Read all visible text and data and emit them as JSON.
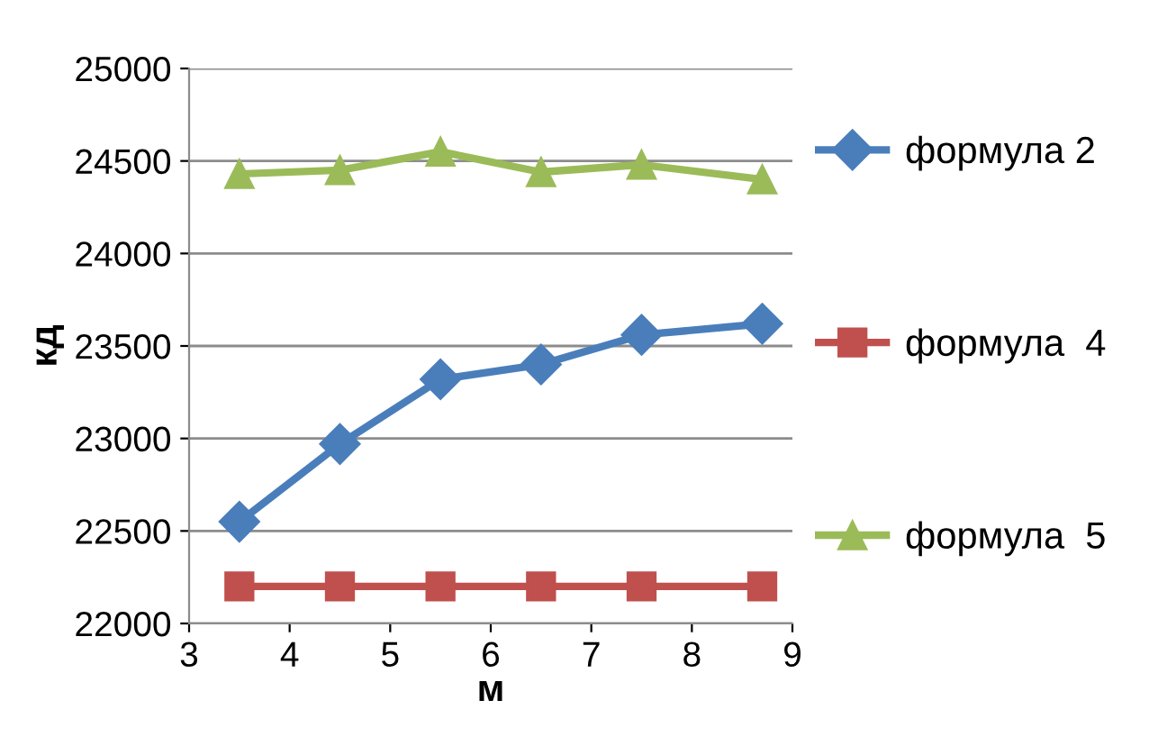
{
  "chart_data": {
    "type": "line",
    "xlabel": "м",
    "ylabel": "кд",
    "x": [
      3.5,
      4.5,
      5.5,
      6.5,
      7.5,
      8.7
    ],
    "xlim": [
      3,
      9
    ],
    "xticks": [
      3,
      4,
      5,
      6,
      7,
      8,
      9
    ],
    "ylim": [
      22000,
      25000
    ],
    "yticks": [
      22000,
      22500,
      23000,
      23500,
      24000,
      24500,
      25000
    ],
    "grid": "y",
    "legend": "right",
    "series": [
      {
        "name": "формула 2",
        "color": "#4a7ebb",
        "marker": "diamond",
        "values": [
          22550,
          22970,
          23320,
          23400,
          23560,
          23620
        ]
      },
      {
        "name": "формула  4",
        "color": "#c0504d",
        "marker": "square",
        "values": [
          22200,
          22200,
          22200,
          22200,
          22200,
          22200
        ]
      },
      {
        "name": "формула  5",
        "color": "#9bbb59",
        "marker": "triangle",
        "values": [
          24430,
          24450,
          24550,
          24440,
          24480,
          24400
        ]
      }
    ]
  }
}
